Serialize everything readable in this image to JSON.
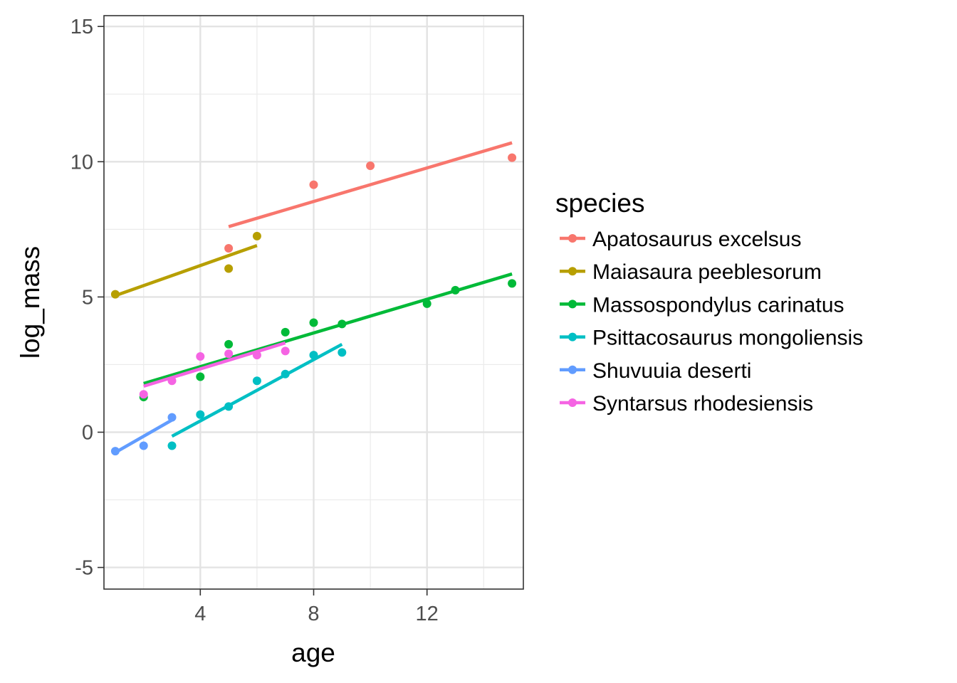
{
  "chart_data": {
    "type": "scatter",
    "xlabel": "age",
    "ylabel": "log_mass",
    "xlim": [
      0.6,
      15.4
    ],
    "ylim": [
      -5.8,
      15.4
    ],
    "x_ticks": [
      4,
      8,
      12
    ],
    "x_tick_labels": [
      "4",
      "8",
      "12"
    ],
    "x_minor_ticks": [
      2,
      6,
      10,
      14
    ],
    "y_ticks": [
      -5,
      0,
      5,
      10,
      15
    ],
    "y_tick_labels": [
      "-5",
      "0",
      "5",
      "10",
      "15"
    ],
    "y_minor_ticks": [
      -2.5,
      2.5,
      7.5,
      12.5
    ],
    "grid": true,
    "legend": {
      "title": "species",
      "position": "right"
    },
    "series": [
      {
        "name": "Apatosaurus excelsus",
        "color": "#F8766D",
        "points": [
          [
            5,
            6.8
          ],
          [
            8,
            9.15
          ],
          [
            10,
            9.85
          ],
          [
            15,
            10.15
          ]
        ],
        "fit": [
          [
            5,
            7.6
          ],
          [
            15,
            10.7
          ]
        ]
      },
      {
        "name": "Maiasaura peeblesorum",
        "color": "#B79F00",
        "points": [
          [
            1,
            5.1
          ],
          [
            5,
            6.05
          ],
          [
            6,
            7.25
          ]
        ],
        "fit": [
          [
            1,
            5.05
          ],
          [
            6,
            6.9
          ]
        ]
      },
      {
        "name": "Massospondylus carinatus",
        "color": "#00BA38",
        "points": [
          [
            2,
            1.3
          ],
          [
            4,
            2.05
          ],
          [
            5,
            3.25
          ],
          [
            7,
            3.7
          ],
          [
            8,
            4.05
          ],
          [
            9,
            4.0
          ],
          [
            12,
            4.75
          ],
          [
            13,
            5.25
          ],
          [
            15,
            5.5
          ]
        ],
        "fit": [
          [
            2,
            1.8
          ],
          [
            15,
            5.85
          ]
        ]
      },
      {
        "name": "Psittacosaurus mongoliensis",
        "color": "#00BFC4",
        "points": [
          [
            3,
            -0.5
          ],
          [
            4,
            0.65
          ],
          [
            5,
            0.95
          ],
          [
            6,
            1.9
          ],
          [
            7,
            2.15
          ],
          [
            8,
            2.85
          ],
          [
            9,
            2.95
          ]
        ],
        "fit": [
          [
            3,
            -0.15
          ],
          [
            9,
            3.25
          ]
        ]
      },
      {
        "name": "Shuvuuia deserti",
        "color": "#619CFF",
        "points": [
          [
            1,
            -0.7
          ],
          [
            2,
            -0.5
          ],
          [
            3,
            0.55
          ]
        ],
        "fit": [
          [
            1,
            -0.75
          ],
          [
            3,
            0.45
          ]
        ]
      },
      {
        "name": "Syntarsus rhodesiensis",
        "color": "#F564E3",
        "points": [
          [
            2,
            1.4
          ],
          [
            3,
            1.9
          ],
          [
            4,
            2.8
          ],
          [
            5,
            2.9
          ],
          [
            6,
            2.85
          ],
          [
            7,
            3.0
          ]
        ],
        "fit": [
          [
            2,
            1.7
          ],
          [
            7,
            3.3
          ]
        ]
      }
    ]
  }
}
